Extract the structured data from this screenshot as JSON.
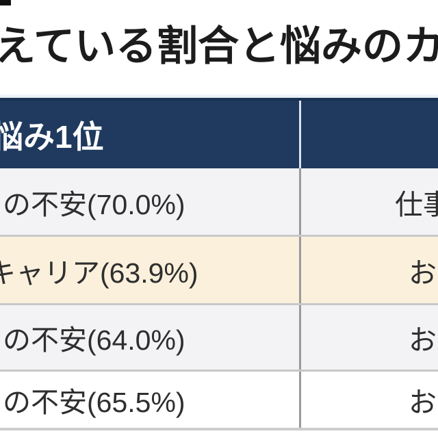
{
  "title": {
    "text": "えている割合と悩みのカ"
  },
  "table": {
    "header": {
      "col1": "悩み1位",
      "col2": ""
    },
    "rows": [
      {
        "col1": "の不安(70.0%)",
        "col2": "仕事"
      },
      {
        "col1": "キャリア(63.9%)",
        "col2": "お"
      },
      {
        "col1": "の不安(64.0%)",
        "col2": "お"
      },
      {
        "col1": "の不安(65.5%)",
        "col2": "お"
      }
    ],
    "row_backgrounds": [
      "#f3f3f5",
      "#faf0dc",
      "#f3f3f5",
      "#ffffff"
    ],
    "colors": {
      "header_bg": "#1f3a5e",
      "header_text": "#ffffff",
      "row_alt_bg": "#f3f3f5",
      "row_highlight_bg": "#faf0dc",
      "row_default_bg": "#ffffff",
      "body_text": "#2e2e2e",
      "row_border": "#c8c8c8",
      "column_divider": "#9a9a9a",
      "title_text": "#1c1c1c"
    }
  }
}
